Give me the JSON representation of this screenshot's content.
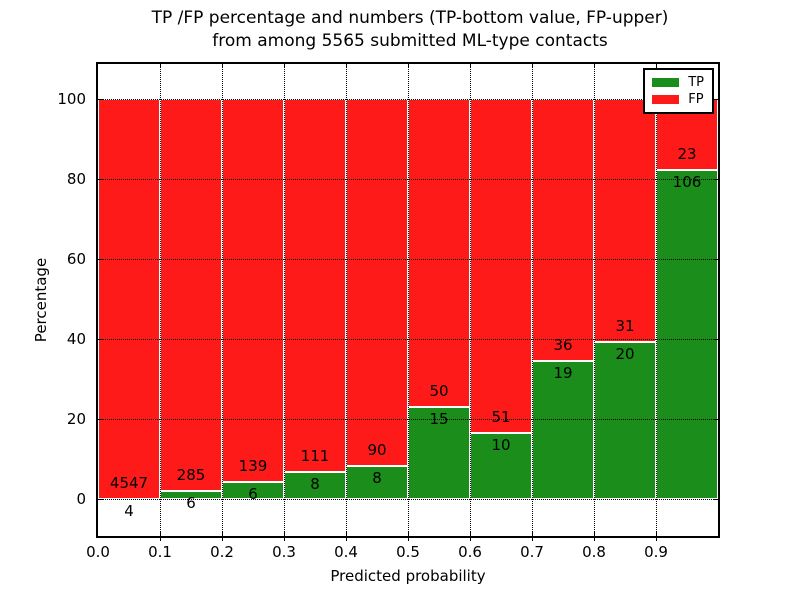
{
  "title": {
    "line1": "TP /FP percentage and numbers (TP-bottom value, FP-upper)",
    "line2": "from among 5565 submitted ML-type contacts"
  },
  "axes": {
    "xlabel": "Predicted probability",
    "ylabel": "Percentage",
    "x_tick_labels": [
      "0.0",
      "0.1",
      "0.2",
      "0.3",
      "0.4",
      "0.5",
      "0.6",
      "0.7",
      "0.8",
      "0.9"
    ],
    "y_tick_labels": [
      "0",
      "20",
      "40",
      "60",
      "80",
      "100"
    ],
    "y_tick_values": [
      0,
      20,
      40,
      60,
      80,
      100
    ],
    "grid": true
  },
  "legend": {
    "position": "upper right",
    "items": [
      {
        "label": "TP",
        "color": "#1a8d1a"
      },
      {
        "label": "FP",
        "color": "#ff1a1a"
      }
    ]
  },
  "chart_data": {
    "type": "bar",
    "stacked": true,
    "normalized_to": 100,
    "title": "TP /FP percentage and numbers (TP-bottom value, FP-upper) from among 5565 submitted ML-type contacts",
    "xlabel": "Predicted probability",
    "ylabel": "Percentage",
    "x_bins": [
      [
        0.0,
        0.1
      ],
      [
        0.1,
        0.2
      ],
      [
        0.2,
        0.3
      ],
      [
        0.3,
        0.4
      ],
      [
        0.4,
        0.5
      ],
      [
        0.5,
        0.6
      ],
      [
        0.6,
        0.7
      ],
      [
        0.7,
        0.8
      ],
      [
        0.8,
        0.9
      ],
      [
        0.9,
        1.0
      ]
    ],
    "categories": [
      "0.0-0.1",
      "0.1-0.2",
      "0.2-0.3",
      "0.3-0.4",
      "0.4-0.5",
      "0.5-0.6",
      "0.6-0.7",
      "0.7-0.8",
      "0.8-0.9",
      "0.9-1.0"
    ],
    "series": [
      {
        "name": "TP",
        "color": "#1a8d1a",
        "counts": [
          4,
          6,
          6,
          8,
          8,
          15,
          10,
          19,
          20,
          106
        ],
        "percent": [
          0.09,
          2.06,
          4.14,
          6.72,
          8.16,
          23.08,
          16.39,
          34.55,
          39.22,
          82.17
        ]
      },
      {
        "name": "FP",
        "color": "#ff1a1a",
        "counts": [
          4547,
          285,
          139,
          111,
          90,
          50,
          51,
          36,
          31,
          23
        ],
        "percent": [
          99.91,
          97.94,
          95.86,
          93.28,
          91.84,
          76.92,
          83.61,
          65.45,
          60.78,
          17.83
        ]
      }
    ],
    "total_contacts": 5565,
    "xlim": [
      0.0,
      1.0
    ],
    "ylim_ticks": [
      0,
      100
    ],
    "legend_entries": [
      "TP",
      "FP"
    ]
  }
}
